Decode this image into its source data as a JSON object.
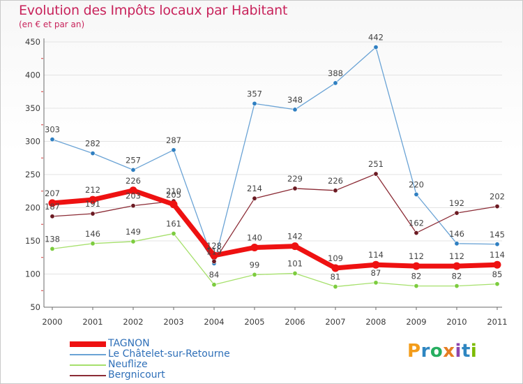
{
  "title": "Evolution des Impôts locaux par Habitant",
  "subtitle": "(en € et par an)",
  "logo": {
    "text": "Proxiti",
    "letters": [
      "P",
      "r",
      "o",
      "x",
      "i",
      "t",
      "i"
    ],
    "colors": [
      "#f39c1a",
      "#2e86c1",
      "#27ae60",
      "#e67e22",
      "#8e44ad",
      "#2e86c1",
      "#7cbb00"
    ]
  },
  "chart_data": {
    "type": "line",
    "title": "Evolution des Impôts locaux par Habitant",
    "subtitle": "(en € et par an)",
    "xlabel": "",
    "ylabel": "",
    "x": [
      "2000",
      "2001",
      "2002",
      "2003",
      "2004",
      "2005",
      "2006",
      "2007",
      "2008",
      "2009",
      "2010",
      "2011"
    ],
    "ylim": [
      50,
      450
    ],
    "yticks": [
      "50",
      "100",
      "150",
      "200",
      "250",
      "300",
      "350",
      "400",
      "450"
    ],
    "ytick_values": [
      50,
      100,
      150,
      200,
      250,
      300,
      350,
      400,
      450
    ],
    "grid": true,
    "legend_position": "bottom-left",
    "series": [
      {
        "name": "Le Châtelet-sur-Retourne",
        "color": "#6aa3d5",
        "marker": "#2f7fc1",
        "width": 1.3,
        "values": [
          303,
          282,
          257,
          287,
          116,
          357,
          348,
          388,
          442,
          220,
          146,
          145
        ],
        "labels": [
          "303",
          "282",
          "257",
          "287",
          "",
          "357",
          "348",
          "388",
          "442",
          "220",
          "146",
          "145"
        ]
      },
      {
        "name": "Neuflize",
        "color": "#a6e06c",
        "marker": "#7ccc3e",
        "width": 1.3,
        "values": [
          138,
          146,
          149,
          161,
          84,
          99,
          101,
          81,
          87,
          82,
          82,
          85
        ],
        "labels": [
          "138",
          "146",
          "149",
          "161",
          "84",
          "99",
          "101",
          "81",
          "87",
          "82",
          "82",
          "85"
        ]
      },
      {
        "name": "Bergnicourt",
        "color": "#8b2b35",
        "marker": "#6b1a22",
        "width": 1.3,
        "values": [
          187,
          191,
          203,
          210,
          119,
          214,
          229,
          226,
          251,
          162,
          192,
          202
        ],
        "labels": [
          "187",
          "191",
          "203",
          "210",
          "119",
          "214",
          "229",
          "226",
          "251",
          "162",
          "192",
          "202"
        ]
      },
      {
        "name": "TAGNON",
        "color": "#ee1111",
        "marker": "#ee1111",
        "width": 7,
        "values": [
          207,
          212,
          226,
          205,
          128,
          140,
          142,
          109,
          114,
          112,
          112,
          114
        ],
        "labels": [
          "207",
          "212",
          "226",
          "205",
          "128",
          "140",
          "142",
          "109",
          "114",
          "112",
          "112",
          "114"
        ]
      }
    ],
    "legend_order": [
      "TAGNON",
      "Le Châtelet-sur-Retourne",
      "Neuflize",
      "Bergnicourt"
    ]
  }
}
